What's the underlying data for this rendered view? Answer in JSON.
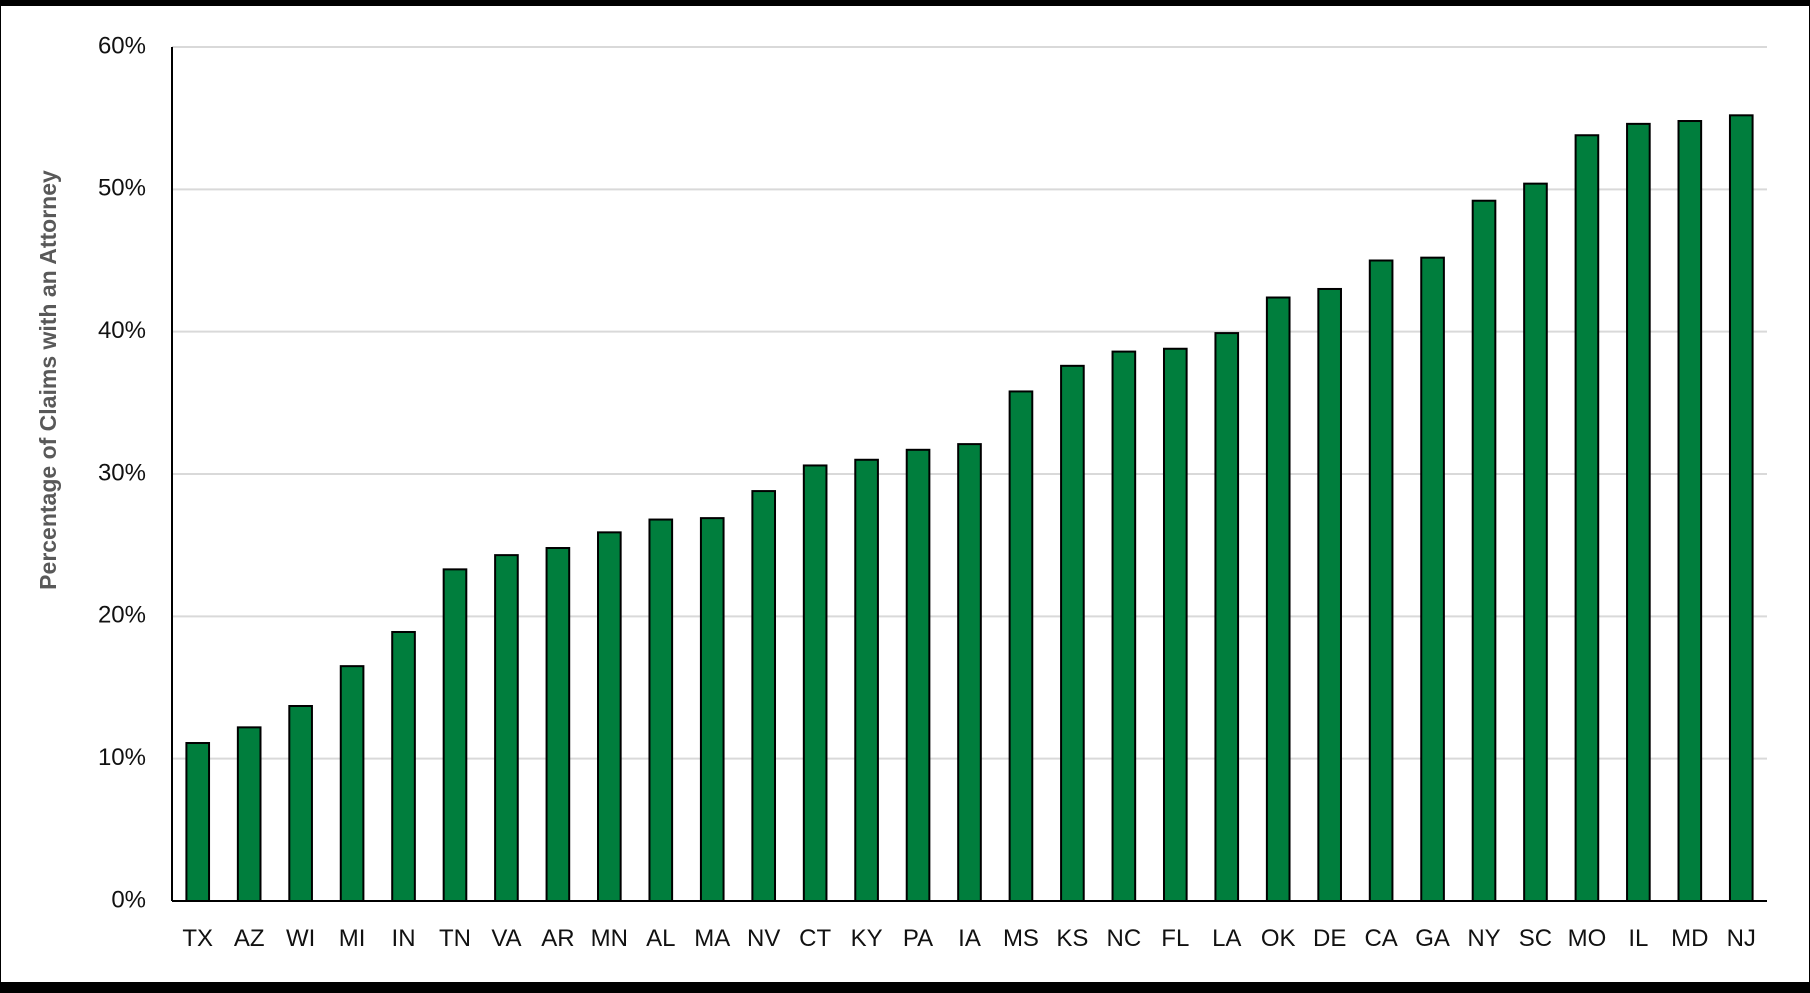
{
  "chart_data": {
    "type": "bar",
    "title": "",
    "xlabel": "",
    "ylabel": "Percentage of Claims with an Attorney",
    "ylim": [
      0,
      60
    ],
    "yticks": [
      "0%",
      "10%",
      "20%",
      "30%",
      "40%",
      "50%",
      "60%"
    ],
    "ytick_values": [
      0,
      10,
      20,
      30,
      40,
      50,
      60
    ],
    "categories": [
      "TX",
      "AZ",
      "WI",
      "MI",
      "IN",
      "TN",
      "VA",
      "AR",
      "MN",
      "AL",
      "MA",
      "NV",
      "CT",
      "KY",
      "PA",
      "IA",
      "MS",
      "KS",
      "NC",
      "FL",
      "LA",
      "OK",
      "DE",
      "CA",
      "GA",
      "NY",
      "SC",
      "MO",
      "IL",
      "MD",
      "NJ"
    ],
    "values": [
      11.1,
      12.2,
      13.7,
      16.5,
      18.9,
      23.3,
      24.3,
      24.8,
      25.9,
      26.8,
      26.9,
      28.8,
      30.6,
      31.0,
      31.7,
      32.1,
      35.8,
      37.6,
      38.6,
      38.8,
      39.9,
      42.4,
      43.0,
      45.0,
      45.2,
      49.2,
      50.4,
      53.8,
      54.6,
      54.8,
      55.2
    ],
    "grid": true,
    "colors": {
      "bar_fill": "#007E3D",
      "bar_stroke": "#000000",
      "grid": "#d9d9d9",
      "axis": "#000000"
    }
  }
}
